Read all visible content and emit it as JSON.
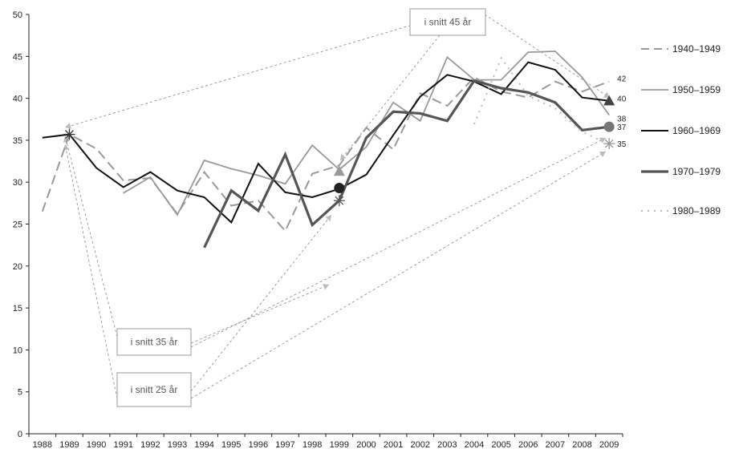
{
  "chart_data": {
    "type": "line",
    "x": [
      "1988",
      "1989",
      "1990",
      "1991",
      "1992",
      "1993",
      "1994",
      "1995",
      "1996",
      "1997",
      "1998",
      "1999",
      "2000",
      "2001",
      "2002",
      "2003",
      "2004",
      "2005",
      "2006",
      "2007",
      "2008",
      "2009"
    ],
    "ylim": [
      0,
      50
    ],
    "yticks": [
      0,
      5,
      10,
      15,
      20,
      25,
      30,
      35,
      40,
      45,
      50
    ],
    "grid": false,
    "legend_position": "right",
    "series": [
      {
        "name": "1940–1949",
        "color": "#999999",
        "dash": "dash",
        "values": [
          26.5,
          35.7,
          34.0,
          30.2,
          30.5,
          26.2,
          31.2,
          27.2,
          27.8,
          24.2,
          31.0,
          32.0,
          36.5,
          33.9,
          40.6,
          39.1,
          42.5,
          40.8,
          40.1,
          42.0,
          40.8,
          42.0
        ],
        "end_label": "42",
        "marker": null
      },
      {
        "name": "1950–1959",
        "color": "#999999",
        "dash": "solid",
        "values": [
          null,
          null,
          null,
          28.7,
          30.6,
          26.1,
          32.6,
          31.6,
          30.8,
          29.8,
          34.4,
          31.5,
          34.2,
          39.5,
          37.3,
          44.9,
          42.2,
          42.2,
          45.5,
          45.6,
          42.5,
          38.0
        ],
        "end_label": "38",
        "marker": null
      },
      {
        "name": "1960–1969",
        "color": "#111111",
        "dash": "solid",
        "values": [
          35.3,
          35.7,
          31.7,
          29.4,
          31.2,
          29.0,
          28.2,
          25.2,
          32.2,
          28.8,
          28.2,
          29.2,
          30.9,
          35.6,
          40.2,
          42.8,
          42.0,
          40.5,
          44.3,
          43.4,
          40.1,
          39.7
        ],
        "end_label": "40",
        "marker": "triangle"
      },
      {
        "name": "1970–1979",
        "color": "#555555",
        "dash": "solid",
        "values": [
          null,
          null,
          null,
          null,
          null,
          null,
          22.2,
          29.0,
          26.6,
          33.3,
          24.9,
          27.8,
          35.3,
          38.4,
          38.2,
          37.3,
          42.1,
          41.2,
          40.7,
          39.5,
          36.2,
          36.6
        ],
        "end_label": "37",
        "marker": "circle"
      },
      {
        "name": "1980–1989",
        "color": "#bbbbbb",
        "dash": "dot",
        "values": [
          null,
          null,
          null,
          null,
          null,
          null,
          null,
          null,
          null,
          null,
          null,
          null,
          null,
          null,
          null,
          null,
          36.9,
          44.8,
          40.3,
          38.8,
          36.0,
          34.5
        ],
        "end_label": "35",
        "marker": "star"
      }
    ],
    "annotations": [
      {
        "text": "i snitt 45 år"
      },
      {
        "text": "i snitt 35 år"
      },
      {
        "text": "i snitt 25 år"
      }
    ]
  }
}
